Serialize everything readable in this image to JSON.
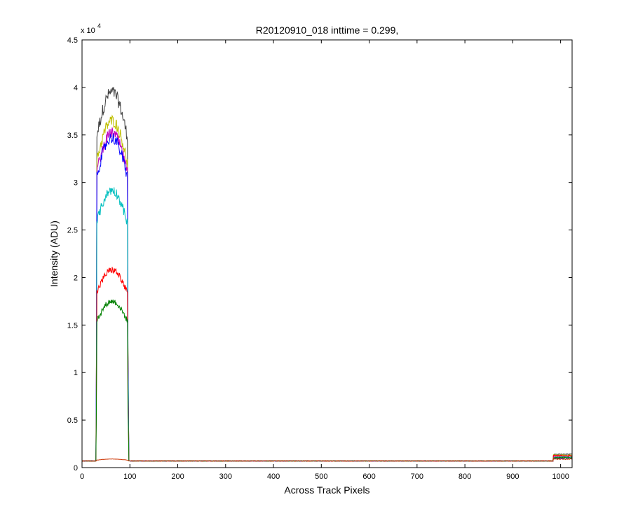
{
  "chart_data": {
    "type": "line",
    "title": "R20120910_018 inttime = 0.299,",
    "xlabel": "Across Track Pixels",
    "ylabel": "Intensity (ADU)",
    "xlim": [
      0,
      1024
    ],
    "ylim": [
      0,
      45000
    ],
    "y_multiplier_label": "x 10",
    "y_multiplier_exponent": "4",
    "x_ticks": [
      0,
      100,
      200,
      300,
      400,
      500,
      600,
      700,
      800,
      900,
      1000
    ],
    "x_tick_labels": [
      "0",
      "100",
      "200",
      "300",
      "400",
      "500",
      "600",
      "700",
      "800",
      "900",
      "1000"
    ],
    "y_ticks": [
      0,
      5000,
      10000,
      15000,
      20000,
      25000,
      30000,
      35000,
      40000,
      45000
    ],
    "y_tick_labels": [
      "0",
      "0.5",
      "1",
      "1.5",
      "2",
      "2.5",
      "3",
      "3.5",
      "4",
      "4.5"
    ],
    "grid": false,
    "legend": "none",
    "baseline": 700,
    "plateau_x": [
      30,
      95
    ],
    "right_bump_x": [
      985,
      1024
    ],
    "series": [
      {
        "color": "#404040",
        "peak": 39500,
        "right_bump": 1400
      },
      {
        "color": "#bfbf00",
        "peak": 36500,
        "right_bump": 1300
      },
      {
        "color": "#bf00bf",
        "peak": 35200,
        "right_bump": 1200
      },
      {
        "color": "#0000ff",
        "peak": 34700,
        "right_bump": 1000
      },
      {
        "color": "#00bfbf",
        "peak": 29200,
        "right_bump": 1100
      },
      {
        "color": "#ff0000",
        "peak": 20800,
        "right_bump": 1250
      },
      {
        "color": "#008000",
        "peak": 17500,
        "right_bump": 1050
      },
      {
        "color": "#cc3300",
        "peak": 900,
        "right_bump": 900
      }
    ]
  }
}
